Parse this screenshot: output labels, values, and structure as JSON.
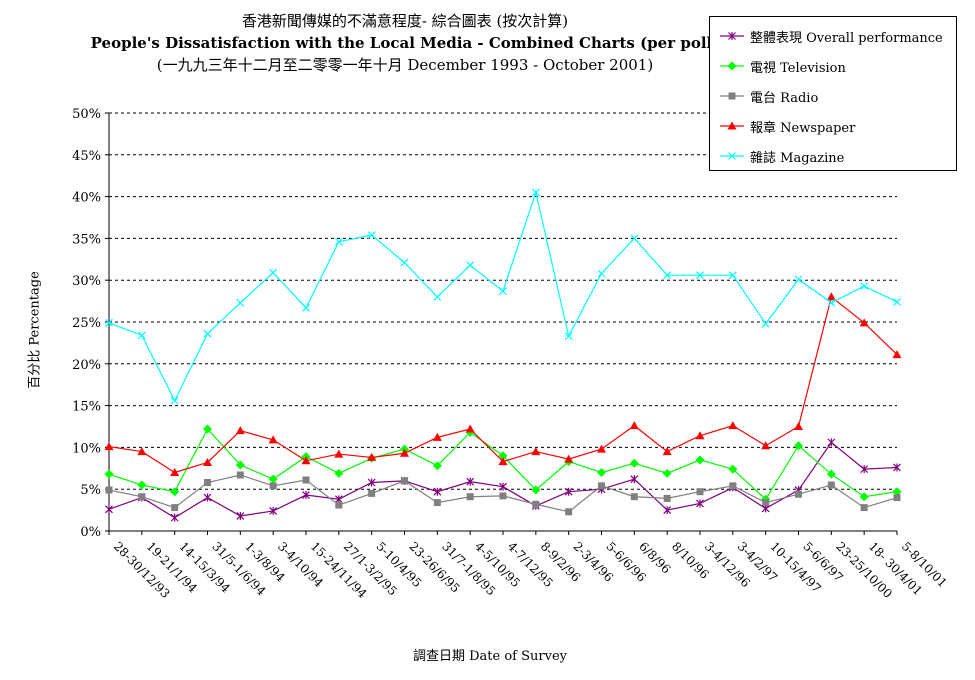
{
  "chart_data": {
    "type": "line",
    "title_zh": "香港新聞傳媒的不滿意程度- 綜合圖表 (按次計算)",
    "title_en": "People's Dissatisfaction with the Local Media - Combined Charts (per poll)",
    "subtitle": "(一九九三年十二月至二零零一年十月 December 1993 - October 2001)",
    "xlabel": "調查日期 Date of Survey",
    "ylabel": "百分比 Percentage",
    "ylim": [
      0,
      50
    ],
    "yticks": [
      "0%",
      "5%",
      "10%",
      "15%",
      "20%",
      "25%",
      "30%",
      "35%",
      "40%",
      "45%",
      "50%"
    ],
    "grid": "horizontal-dashed",
    "legend_position": "top-right",
    "categories": [
      "28-30/12/93",
      "19-21/1/94",
      "14-15/3/94",
      "31/5-1/6/94",
      "1-3/8/94",
      "3-4/10/94",
      "15-24/11/94",
      "27/1-3/2/95",
      "5-10/4/95",
      "23-26/6/95",
      "31/7-1/8/95",
      "4-5/10/95",
      "4-7/12/95",
      "8-9/2/96",
      "2-3/4/96",
      "5-6/6/96",
      "6/8/96",
      "8/10/96",
      "3-4/12/96",
      "3-4/2/97",
      "10-15/4/97",
      "5-6/6/97",
      "23-25/10/00",
      "18- 30/4/01",
      "5-8/10/01"
    ],
    "series": [
      {
        "name": "整體表現 Overall performance",
        "color": "#800080",
        "marker": "star",
        "values": [
          2.6,
          4.0,
          1.6,
          4.0,
          1.8,
          2.4,
          4.3,
          3.8,
          5.8,
          6.0,
          4.7,
          5.9,
          5.3,
          3.0,
          4.7,
          5.0,
          6.2,
          2.5,
          3.3,
          5.2,
          2.7,
          4.9,
          10.6,
          7.4,
          7.6
        ]
      },
      {
        "name": "電視 Television",
        "color": "#00ff00",
        "marker": "diamond",
        "values": [
          6.8,
          5.5,
          4.7,
          12.2,
          7.9,
          6.2,
          8.9,
          6.9,
          8.7,
          9.8,
          7.8,
          11.8,
          9.0,
          4.9,
          8.3,
          7.0,
          8.1,
          6.9,
          8.5,
          7.4,
          3.8,
          10.2,
          6.8,
          4.1,
          4.7
        ]
      },
      {
        "name": "電台 Radio",
        "color": "#808080",
        "marker": "square",
        "values": [
          4.9,
          4.1,
          2.8,
          5.8,
          6.7,
          5.4,
          6.1,
          3.1,
          4.5,
          6.0,
          3.4,
          4.1,
          4.2,
          3.2,
          2.3,
          5.4,
          4.1,
          3.9,
          4.7,
          5.4,
          3.4,
          4.4,
          5.5,
          2.8,
          4.0
        ]
      },
      {
        "name": "報章 Newspaper",
        "color": "#ff0000",
        "marker": "triangle",
        "values": [
          10.1,
          9.5,
          7.0,
          8.2,
          12.0,
          10.9,
          8.4,
          9.2,
          8.8,
          9.3,
          11.2,
          12.2,
          8.3,
          9.5,
          8.6,
          9.8,
          12.6,
          9.5,
          11.4,
          12.6,
          10.2,
          12.5,
          28.0,
          24.9,
          21.1
        ]
      },
      {
        "name": "雜誌 Magazine",
        "color": "#00ffff",
        "marker": "x",
        "values": [
          24.9,
          23.4,
          15.6,
          23.6,
          27.3,
          30.9,
          26.7,
          34.6,
          35.4,
          32.1,
          28.0,
          31.8,
          28.7,
          40.5,
          23.3,
          30.8,
          35.0,
          30.6,
          30.6,
          30.6,
          24.8,
          30.1,
          27.3,
          29.3,
          27.4
        ]
      }
    ]
  }
}
